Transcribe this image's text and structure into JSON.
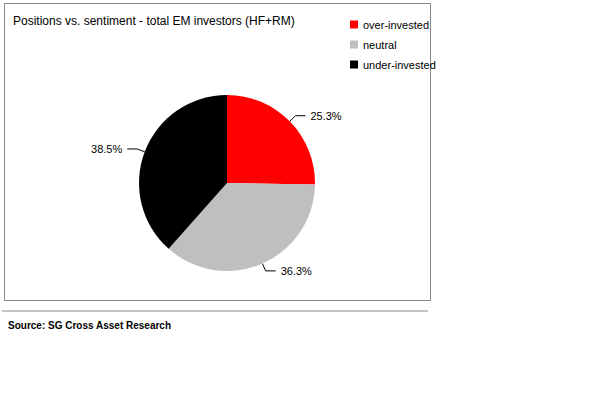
{
  "chart_data": {
    "type": "pie",
    "title": "Positions vs. sentiment - total EM investors (HF+RM)",
    "source": "Source: SG Cross Asset Research",
    "categories": [
      "over-invested",
      "neutral",
      "under-invested"
    ],
    "values": [
      25.3,
      36.3,
      38.5
    ],
    "value_labels": [
      "25.3%",
      "36.3%",
      "38.5%"
    ],
    "colors": [
      "#ff0000",
      "#bfbfbf",
      "#000000"
    ],
    "data_labels": true,
    "legend": "top-right"
  }
}
